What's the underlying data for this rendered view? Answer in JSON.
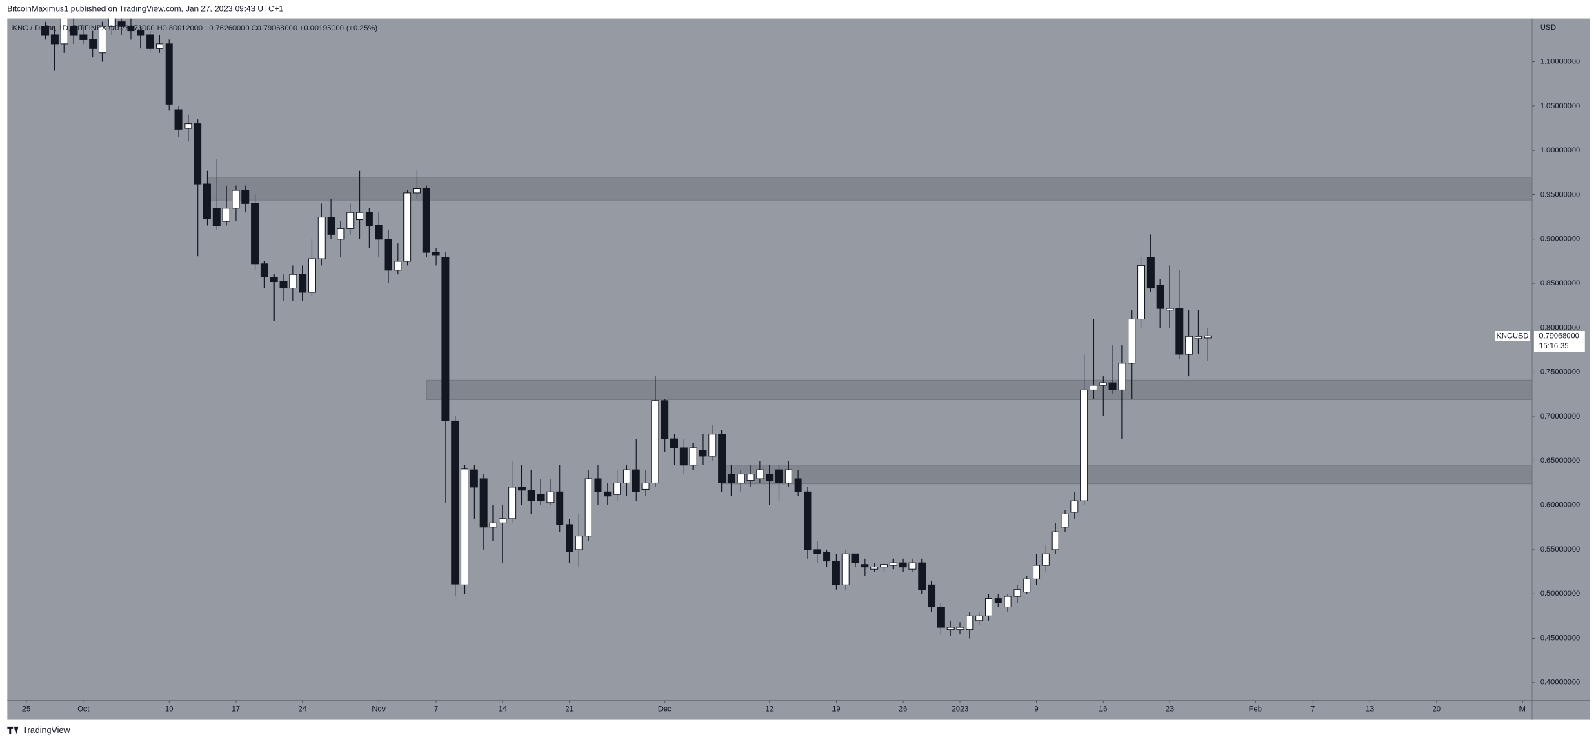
{
  "header": {
    "published": "BitcoinMaximus1 published on TradingView.com, Jan 27, 2023 09:43 UTC+1",
    "legend": "KNC / Dollar, 1D, BITFINEX  O0.78873000  H0.80012000  L0.76260000  C0.79068000  +0.00195000 (+0.25%)",
    "currency": "USD",
    "symbol": "KNCUSD",
    "last_price_label": "0.79068000",
    "countdown": "15:16:35"
  },
  "footer": {
    "brand": "TradingView"
  },
  "chart_data": {
    "type": "candlestick",
    "x": [
      "2022-09-27",
      "2022-09-28",
      "2022-09-29",
      "2022-09-30",
      "2022-10-01",
      "2022-10-02",
      "2022-10-03",
      "2022-10-04",
      "2022-10-05",
      "2022-10-06",
      "2022-10-07",
      "2022-10-08",
      "2022-10-09",
      "2022-10-10",
      "2022-10-11",
      "2022-10-12",
      "2022-10-13",
      "2022-10-14",
      "2022-10-15",
      "2022-10-16",
      "2022-10-17",
      "2022-10-18",
      "2022-10-19",
      "2022-10-20",
      "2022-10-21",
      "2022-10-22",
      "2022-10-23",
      "2022-10-24",
      "2022-10-25",
      "2022-10-26",
      "2022-10-27",
      "2022-10-28",
      "2022-10-29",
      "2022-10-30",
      "2022-10-31",
      "2022-11-01",
      "2022-11-02",
      "2022-11-03",
      "2022-11-04",
      "2022-11-05",
      "2022-11-06",
      "2022-11-07",
      "2022-11-08",
      "2022-11-09",
      "2022-11-10",
      "2022-11-11",
      "2022-11-12",
      "2022-11-13",
      "2022-11-14",
      "2022-11-15",
      "2022-11-16",
      "2022-11-17",
      "2022-11-18",
      "2022-11-19",
      "2022-11-20",
      "2022-11-21",
      "2022-11-22",
      "2022-11-23",
      "2022-11-24",
      "2022-11-25",
      "2022-11-26",
      "2022-11-27",
      "2022-11-28",
      "2022-11-29",
      "2022-11-30",
      "2022-12-01",
      "2022-12-02",
      "2022-12-03",
      "2022-12-04",
      "2022-12-05",
      "2022-12-06",
      "2022-12-07",
      "2022-12-08",
      "2022-12-09",
      "2022-12-10",
      "2022-12-11",
      "2022-12-12",
      "2022-12-13",
      "2022-12-14",
      "2022-12-15",
      "2022-12-16",
      "2022-12-17",
      "2022-12-18",
      "2022-12-19",
      "2022-12-20",
      "2022-12-21",
      "2022-12-22",
      "2022-12-23",
      "2022-12-24",
      "2022-12-25",
      "2022-12-26",
      "2022-12-27",
      "2022-12-28",
      "2022-12-29",
      "2022-12-30",
      "2022-12-31",
      "2023-01-01",
      "2023-01-02",
      "2023-01-03",
      "2023-01-04",
      "2023-01-05",
      "2023-01-06",
      "2023-01-07",
      "2023-01-08",
      "2023-01-09",
      "2023-01-10",
      "2023-01-11",
      "2023-01-12",
      "2023-01-13",
      "2023-01-14",
      "2023-01-15",
      "2023-01-16",
      "2023-01-17",
      "2023-01-18",
      "2023-01-19",
      "2023-01-20",
      "2023-01-21",
      "2023-01-22",
      "2023-01-23",
      "2023-01-24",
      "2023-01-25",
      "2023-01-26",
      "2023-01-27"
    ],
    "open": [
      1.14,
      1.13,
      1.12,
      1.14,
      1.13,
      1.125,
      1.11,
      1.14,
      1.145,
      1.14,
      1.135,
      1.13,
      1.115,
      1.12,
      1.046,
      1.025,
      1.03,
      0.962,
      0.935,
      0.92,
      0.935,
      0.955,
      0.94,
      0.872,
      0.857,
      0.852,
      0.845,
      0.86,
      0.84,
      0.878,
      0.925,
      0.9,
      0.912,
      0.922,
      0.93,
      0.915,
      0.9,
      0.865,
      0.875,
      0.952,
      0.957,
      0.885,
      0.88,
      0.695,
      0.51,
      0.64,
      0.63,
      0.575,
      0.58,
      0.585,
      0.62,
      0.617,
      0.612,
      0.603,
      0.615,
      0.578,
      0.55,
      0.565,
      0.63,
      0.615,
      0.612,
      0.625,
      0.64,
      0.618,
      0.625,
      0.718,
      0.675,
      0.665,
      0.645,
      0.662,
      0.655,
      0.68,
      0.635,
      0.625,
      0.628,
      0.63,
      0.635,
      0.64,
      0.625,
      0.63,
      0.615,
      0.55,
      0.547,
      0.537,
      0.51,
      0.545,
      0.533,
      0.528,
      0.53,
      0.532,
      0.535,
      0.528,
      0.535,
      0.51,
      0.485,
      0.46,
      0.46,
      0.46,
      0.47,
      0.475,
      0.495,
      0.485,
      0.497,
      0.502,
      0.517,
      0.532,
      0.55,
      0.575,
      0.592,
      0.605,
      0.73,
      0.735,
      0.738,
      0.73,
      0.76,
      0.81,
      0.88,
      0.848,
      0.82,
      0.822,
      0.77,
      0.788,
      0.78873
    ],
    "high": [
      1.145,
      1.14,
      1.16,
      1.155,
      1.14,
      1.135,
      1.145,
      1.16,
      1.155,
      1.15,
      1.14,
      1.135,
      1.13,
      1.125,
      1.05,
      1.04,
      1.035,
      0.977,
      0.99,
      0.96,
      0.96,
      0.96,
      0.95,
      0.875,
      0.86,
      0.86,
      0.87,
      0.87,
      0.9,
      0.94,
      0.945,
      0.92,
      0.94,
      0.977,
      0.935,
      0.93,
      0.91,
      0.895,
      0.955,
      0.978,
      0.96,
      0.89,
      0.885,
      0.7,
      0.645,
      0.645,
      0.635,
      0.6,
      0.6,
      0.65,
      0.645,
      0.64,
      0.63,
      0.63,
      0.645,
      0.585,
      0.59,
      0.64,
      0.645,
      0.625,
      0.64,
      0.645,
      0.675,
      0.64,
      0.745,
      0.72,
      0.68,
      0.675,
      0.67,
      0.68,
      0.69,
      0.685,
      0.645,
      0.64,
      0.645,
      0.65,
      0.645,
      0.645,
      0.65,
      0.64,
      0.62,
      0.56,
      0.55,
      0.545,
      0.55,
      0.545,
      0.54,
      0.535,
      0.535,
      0.54,
      0.54,
      0.54,
      0.54,
      0.515,
      0.49,
      0.47,
      0.468,
      0.48,
      0.48,
      0.5,
      0.5,
      0.5,
      0.51,
      0.52,
      0.545,
      0.555,
      0.58,
      0.595,
      0.615,
      0.77,
      0.81,
      0.745,
      0.78,
      0.78,
      0.82,
      0.88,
      0.905,
      0.855,
      0.87,
      0.865,
      0.82,
      0.82,
      0.80012
    ],
    "low": [
      1.125,
      1.09,
      1.11,
      1.12,
      1.12,
      1.105,
      1.1,
      1.13,
      1.13,
      1.125,
      1.115,
      1.11,
      1.11,
      1.045,
      1.015,
      1.01,
      0.881,
      0.915,
      0.91,
      0.915,
      0.92,
      0.93,
      0.865,
      0.845,
      0.808,
      0.83,
      0.83,
      0.83,
      0.835,
      0.87,
      0.9,
      0.88,
      0.905,
      0.9,
      0.89,
      0.88,
      0.85,
      0.86,
      0.87,
      0.945,
      0.88,
      0.87,
      0.602,
      0.497,
      0.5,
      0.585,
      0.55,
      0.56,
      0.535,
      0.58,
      0.6,
      0.59,
      0.6,
      0.6,
      0.57,
      0.535,
      0.53,
      0.56,
      0.6,
      0.6,
      0.605,
      0.61,
      0.605,
      0.61,
      0.62,
      0.66,
      0.645,
      0.635,
      0.64,
      0.645,
      0.65,
      0.615,
      0.61,
      0.615,
      0.62,
      0.625,
      0.6,
      0.605,
      0.62,
      0.61,
      0.54,
      0.535,
      0.53,
      0.505,
      0.505,
      0.53,
      0.52,
      0.525,
      0.525,
      0.528,
      0.525,
      0.525,
      0.5,
      0.48,
      0.455,
      0.452,
      0.455,
      0.45,
      0.465,
      0.47,
      0.485,
      0.48,
      0.49,
      0.5,
      0.51,
      0.525,
      0.545,
      0.57,
      0.585,
      0.6,
      0.72,
      0.7,
      0.725,
      0.675,
      0.72,
      0.8,
      0.84,
      0.8,
      0.8,
      0.765,
      0.745,
      0.77,
      0.7626
    ],
    "close": [
      1.13,
      1.12,
      1.15,
      1.13,
      1.125,
      1.115,
      1.14,
      1.15,
      1.14,
      1.135,
      1.13,
      1.115,
      1.12,
      1.052,
      1.024,
      1.03,
      0.962,
      0.923,
      0.915,
      0.935,
      0.955,
      0.94,
      0.872,
      0.858,
      0.852,
      0.845,
      0.86,
      0.84,
      0.878,
      0.925,
      0.905,
      0.912,
      0.93,
      0.93,
      0.915,
      0.9,
      0.865,
      0.875,
      0.952,
      0.957,
      0.885,
      0.882,
      0.695,
      0.511,
      0.641,
      0.62,
      0.575,
      0.58,
      0.585,
      0.62,
      0.617,
      0.605,
      0.605,
      0.615,
      0.578,
      0.548,
      0.565,
      0.63,
      0.615,
      0.61,
      0.625,
      0.64,
      0.615,
      0.625,
      0.718,
      0.675,
      0.665,
      0.645,
      0.665,
      0.655,
      0.68,
      0.625,
      0.625,
      0.635,
      0.635,
      0.64,
      0.628,
      0.625,
      0.64,
      0.615,
      0.55,
      0.545,
      0.537,
      0.51,
      0.545,
      0.535,
      0.53,
      0.53,
      0.533,
      0.535,
      0.53,
      0.535,
      0.505,
      0.485,
      0.462,
      0.462,
      0.462,
      0.475,
      0.475,
      0.495,
      0.49,
      0.497,
      0.505,
      0.517,
      0.532,
      0.545,
      0.57,
      0.59,
      0.605,
      0.73,
      0.735,
      0.738,
      0.73,
      0.76,
      0.81,
      0.87,
      0.845,
      0.822,
      0.822,
      0.77,
      0.79,
      0.79,
      0.79068
    ],
    "up_color": "#ffffff",
    "down_color": "#131722",
    "background": "#959aa3",
    "zone_color": "#80848c",
    "zones": [
      {
        "low": 0.944,
        "high": 0.97,
        "start": "2022-10-14"
      },
      {
        "low": 0.719,
        "high": 0.741,
        "start": "2022-11-06"
      },
      {
        "low": 0.624,
        "high": 0.645,
        "start": "2022-12-07"
      }
    ],
    "xlim": [
      "2022-09-23",
      "2023-03-02"
    ],
    "ylim": [
      0.38,
      1.149
    ],
    "xticks": [
      {
        "value": "2022-09-25",
        "label": "25"
      },
      {
        "value": "2022-10-01",
        "label": "Oct"
      },
      {
        "value": "2022-10-10",
        "label": "10"
      },
      {
        "value": "2022-10-17",
        "label": "17"
      },
      {
        "value": "2022-10-24",
        "label": "24"
      },
      {
        "value": "2022-11-01",
        "label": "Nov"
      },
      {
        "value": "2022-11-07",
        "label": "7"
      },
      {
        "value": "2022-11-14",
        "label": "14"
      },
      {
        "value": "2022-11-21",
        "label": "21"
      },
      {
        "value": "2022-12-01",
        "label": "Dec"
      },
      {
        "value": "2022-12-12",
        "label": "12"
      },
      {
        "value": "2022-12-19",
        "label": "19"
      },
      {
        "value": "2022-12-26",
        "label": "26"
      },
      {
        "value": "2023-01-01",
        "label": "2023"
      },
      {
        "value": "2023-01-09",
        "label": "9"
      },
      {
        "value": "2023-01-16",
        "label": "16"
      },
      {
        "value": "2023-01-23",
        "label": "23"
      },
      {
        "value": "2023-02-01",
        "label": "Feb"
      },
      {
        "value": "2023-02-07",
        "label": "7"
      },
      {
        "value": "2023-02-13",
        "label": "13"
      },
      {
        "value": "2023-02-20",
        "label": "20"
      },
      {
        "value": "2023-03-01",
        "label": "M"
      }
    ],
    "yticks": [
      {
        "value": 0.4,
        "label": "0.40000000"
      },
      {
        "value": 0.45,
        "label": "0.45000000"
      },
      {
        "value": 0.5,
        "label": "0.50000000"
      },
      {
        "value": 0.55,
        "label": "0.55000000"
      },
      {
        "value": 0.6,
        "label": "0.60000000"
      },
      {
        "value": 0.65,
        "label": "0.65000000"
      },
      {
        "value": 0.7,
        "label": "0.70000000"
      },
      {
        "value": 0.75,
        "label": "0.75000000"
      },
      {
        "value": 0.8,
        "label": "0.80000000"
      },
      {
        "value": 0.85,
        "label": "0.85000000"
      },
      {
        "value": 0.9,
        "label": "0.90000000"
      },
      {
        "value": 0.95,
        "label": "0.95000000"
      },
      {
        "value": 1.0,
        "label": "1.00000000"
      },
      {
        "value": 1.05,
        "label": "1.05000000"
      },
      {
        "value": 1.1,
        "label": "1.10000000"
      }
    ],
    "grid": false
  }
}
